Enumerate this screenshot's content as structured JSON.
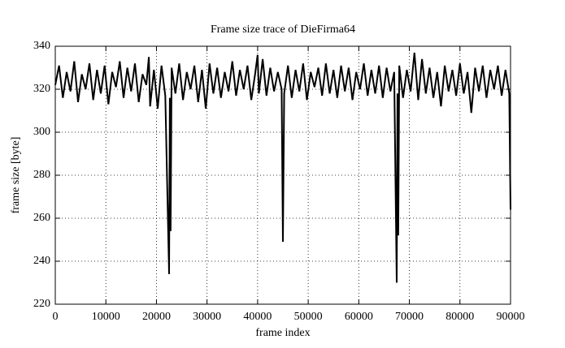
{
  "chart_data": {
    "type": "line",
    "title": "Frame size trace of DieFirma64",
    "xlabel": "frame index",
    "ylabel": "frame size [byte]",
    "color": "#000000",
    "grid": true,
    "x": [
      0,
      750,
      1500,
      2250,
      3000,
      3750,
      4500,
      5250,
      6000,
      6750,
      7500,
      8250,
      9000,
      9750,
      10500,
      11250,
      12000,
      12750,
      13500,
      14250,
      15000,
      15750,
      16500,
      17250,
      18000,
      18500,
      18750,
      19500,
      20250,
      21000,
      21750,
      22500,
      22650,
      22800,
      23000,
      23750,
      24500,
      25250,
      26000,
      26750,
      27500,
      28250,
      29000,
      29750,
      30500,
      31250,
      32000,
      32750,
      33500,
      34250,
      35000,
      35750,
      36500,
      37250,
      38000,
      38750,
      39500,
      40000,
      40250,
      41000,
      41750,
      42500,
      43250,
      44000,
      44750,
      45000,
      45250,
      46000,
      46750,
      47500,
      48250,
      49000,
      49750,
      50500,
      51250,
      52000,
      52750,
      53500,
      54250,
      55000,
      55750,
      56500,
      57250,
      58000,
      58750,
      59500,
      60250,
      61000,
      61750,
      62500,
      63250,
      64000,
      64750,
      65500,
      66250,
      67000,
      67500,
      67650,
      67800,
      68000,
      68750,
      69500,
      70250,
      71000,
      71750,
      72500,
      73250,
      74000,
      74750,
      75500,
      76250,
      77000,
      77750,
      78500,
      79250,
      80000,
      80750,
      81500,
      82250,
      83000,
      83750,
      84500,
      85250,
      86000,
      86750,
      87500,
      88250,
      89000,
      89750,
      90000
    ],
    "values": [
      322,
      331,
      316,
      328,
      319,
      333,
      314,
      327,
      320,
      332,
      315,
      329,
      318,
      331,
      313,
      328,
      321,
      333,
      316,
      330,
      319,
      332,
      314,
      327,
      322,
      335,
      312,
      329,
      311,
      331,
      317,
      234,
      316,
      254,
      330,
      318,
      332,
      315,
      328,
      320,
      331,
      314,
      329,
      311,
      332,
      318,
      330,
      316,
      328,
      319,
      333,
      317,
      329,
      320,
      331,
      315,
      327,
      336,
      318,
      334,
      317,
      330,
      319,
      328,
      320,
      249,
      318,
      331,
      316,
      329,
      319,
      332,
      315,
      328,
      321,
      330,
      317,
      332,
      318,
      329,
      316,
      331,
      319,
      330,
      315,
      328,
      320,
      332,
      317,
      329,
      318,
      331,
      316,
      330,
      319,
      328,
      230,
      318,
      252,
      331,
      316,
      329,
      319,
      337,
      315,
      334,
      318,
      330,
      316,
      328,
      312,
      331,
      319,
      329,
      317,
      332,
      318,
      328,
      309,
      330,
      319,
      331,
      316,
      329,
      320,
      331,
      317,
      329,
      318,
      264
    ],
    "xlim": [
      0,
      90000
    ],
    "ylim": [
      220,
      340
    ],
    "xticks": [
      0,
      10000,
      20000,
      30000,
      40000,
      50000,
      60000,
      70000,
      80000,
      90000
    ],
    "yticks": [
      220,
      240,
      260,
      280,
      300,
      320,
      340
    ]
  }
}
